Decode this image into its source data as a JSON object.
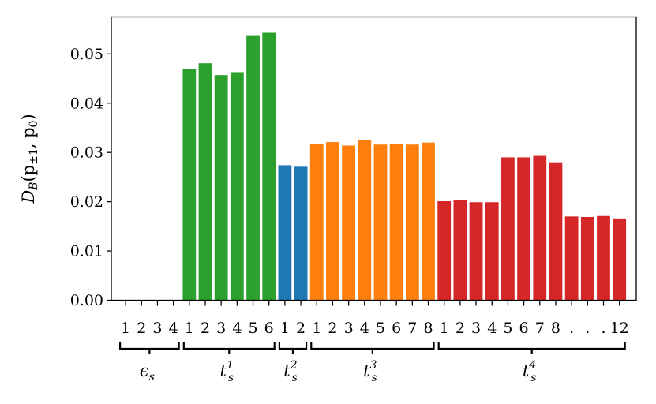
{
  "chart_data": {
    "type": "bar",
    "ylabel": "D_B(p_{±1}, p_0)",
    "ylabel_parts": {
      "main": "D",
      "sub_main": "B",
      "open": "(p",
      "sub_pm": "±1",
      "mid": ", p",
      "sub_zero": "0",
      "close": ")"
    },
    "ylim": [
      0,
      0.0575
    ],
    "yticks": [
      0.0,
      0.01,
      0.02,
      0.03,
      0.04,
      0.05
    ],
    "ytick_labels": [
      "0.00",
      "0.01",
      "0.02",
      "0.03",
      "0.04",
      "0.05"
    ],
    "grid": false,
    "legend": "none",
    "groups": [
      {
        "base": "ϵ",
        "sub": "s",
        "sup": "",
        "color": "#1f77b4",
        "tick_labels": [
          "1",
          "2",
          "3",
          "4"
        ],
        "values": [
          0,
          0,
          0,
          0
        ]
      },
      {
        "base": "t",
        "sub": "s",
        "sup": "1",
        "color": "#2ca02c",
        "tick_labels": [
          "1",
          "2",
          "3",
          "4",
          "5",
          "6"
        ],
        "values": [
          0.0469,
          0.0481,
          0.0457,
          0.0463,
          0.0538,
          0.0543
        ]
      },
      {
        "base": "t",
        "sub": "s",
        "sup": "2",
        "color": "#1f77b4",
        "tick_labels": [
          "1",
          "2"
        ],
        "values": [
          0.0274,
          0.0271
        ]
      },
      {
        "base": "t",
        "sub": "s",
        "sup": "3",
        "color": "#ff7f0e",
        "tick_labels": [
          "1",
          "2",
          "3",
          "4",
          "5",
          "6",
          "7",
          "8"
        ],
        "values": [
          0.0318,
          0.0321,
          0.0314,
          0.0326,
          0.0316,
          0.0318,
          0.0316,
          0.032
        ]
      },
      {
        "base": "t",
        "sub": "s",
        "sup": "4",
        "color": "#d62728",
        "tick_labels": [
          "1",
          "2",
          "3",
          "4",
          "5",
          "6",
          "7",
          "8",
          ".",
          ".",
          ".",
          "12"
        ],
        "values": [
          0.0201,
          0.0204,
          0.0199,
          0.0199,
          0.029,
          0.029,
          0.0293,
          0.028,
          0.017,
          0.0169,
          0.0171,
          0.0166
        ]
      }
    ]
  }
}
